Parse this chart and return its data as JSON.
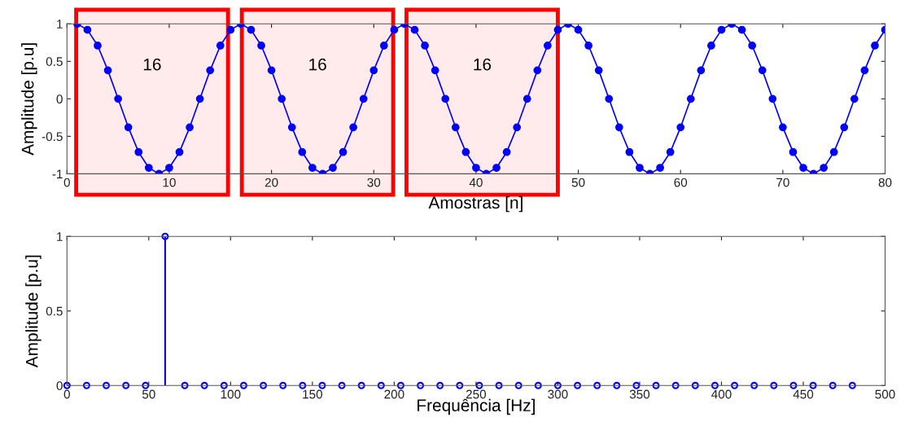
{
  "chart_data": [
    {
      "type": "line",
      "xlabel": "Amostras [n]",
      "ylabel": "Amplitude [p.u]",
      "xlim": [
        0,
        80
      ],
      "ylim": [
        -1,
        1
      ],
      "xticks": [
        0,
        10,
        20,
        30,
        40,
        50,
        60,
        70,
        80
      ],
      "yticks": [
        -1,
        -0.5,
        0,
        0.5,
        1
      ],
      "marker": "circle",
      "line_style": "solid",
      "grid": false,
      "series": [
        {
          "color": "#0000ff",
          "x": [
            1,
            2,
            3,
            4,
            5,
            6,
            7,
            8,
            9,
            10,
            11,
            12,
            13,
            14,
            15,
            16,
            17,
            18,
            19,
            20,
            21,
            22,
            23,
            24,
            25,
            26,
            27,
            28,
            29,
            30,
            31,
            32,
            33,
            34,
            35,
            36,
            37,
            38,
            39,
            40,
            41,
            42,
            43,
            44,
            45,
            46,
            47,
            48,
            49,
            50,
            51,
            52,
            53,
            54,
            55,
            56,
            57,
            58,
            59,
            60,
            61,
            62,
            63,
            64,
            65,
            66,
            67,
            68,
            69,
            70,
            71,
            72,
            73,
            74,
            75,
            76,
            77,
            78,
            79,
            80
          ],
          "values": [
            1,
            0.92,
            0.71,
            0.38,
            0,
            -0.38,
            -0.71,
            -0.92,
            -1,
            -0.92,
            -0.71,
            -0.38,
            0,
            0.38,
            0.71,
            0.92,
            1,
            0.92,
            0.71,
            0.38,
            0,
            -0.38,
            -0.71,
            -0.92,
            -1,
            -0.92,
            -0.71,
            -0.38,
            0,
            0.38,
            0.71,
            0.92,
            1,
            0.92,
            0.71,
            0.38,
            0,
            -0.38,
            -0.71,
            -0.92,
            -1,
            -0.92,
            -0.71,
            -0.38,
            0,
            0.38,
            0.71,
            0.92,
            1,
            0.92,
            0.71,
            0.38,
            0,
            -0.38,
            -0.71,
            -0.92,
            -1,
            -0.92,
            -0.71,
            -0.38,
            0,
            0.38,
            0.71,
            0.92,
            1,
            0.92,
            0.71,
            0.38,
            0,
            -0.38,
            -0.71,
            -0.92,
            -1,
            -0.92,
            -0.71,
            -0.38,
            0,
            0.38,
            0.71,
            0.92
          ]
        }
      ],
      "bands": [
        {
          "axis": "x",
          "from": 0.9,
          "to": 15.75,
          "label": "16",
          "color": "#ff0000"
        },
        {
          "axis": "x",
          "from": 17.1,
          "to": 31.9,
          "label": "16",
          "color": "#ff0000"
        },
        {
          "axis": "x",
          "from": 33.2,
          "to": 48.0,
          "label": "16",
          "color": "#ff0000"
        }
      ]
    },
    {
      "type": "lollipop",
      "xlabel": "Frequência [Hz]",
      "ylabel": "Amplitude [p.u]",
      "xlim": [
        0,
        500
      ],
      "ylim": [
        0,
        1
      ],
      "xticks": [
        0,
        50,
        100,
        150,
        200,
        250,
        300,
        350,
        400,
        450,
        500
      ],
      "yticks": [
        0,
        0.5,
        1
      ],
      "marker": "circle",
      "grid": false,
      "series": [
        {
          "color": "#0000ff",
          "x": [
            0,
            12,
            24,
            36,
            48,
            60,
            72,
            84,
            96,
            108,
            120,
            132,
            144,
            156,
            168,
            180,
            192,
            204,
            216,
            228,
            240,
            252,
            264,
            276,
            288,
            300,
            312,
            324,
            336,
            348,
            360,
            372,
            384,
            396,
            408,
            420,
            432,
            444,
            456,
            468,
            480
          ],
          "values": [
            0,
            0,
            0,
            0,
            0,
            1,
            0,
            0,
            0,
            0,
            0,
            0,
            0,
            0,
            0,
            0,
            0,
            0,
            0,
            0,
            0,
            0,
            0,
            0,
            0,
            0,
            0,
            0,
            0,
            0,
            0,
            0,
            0,
            0,
            0,
            0,
            0,
            0,
            0,
            0,
            0
          ]
        }
      ]
    }
  ]
}
